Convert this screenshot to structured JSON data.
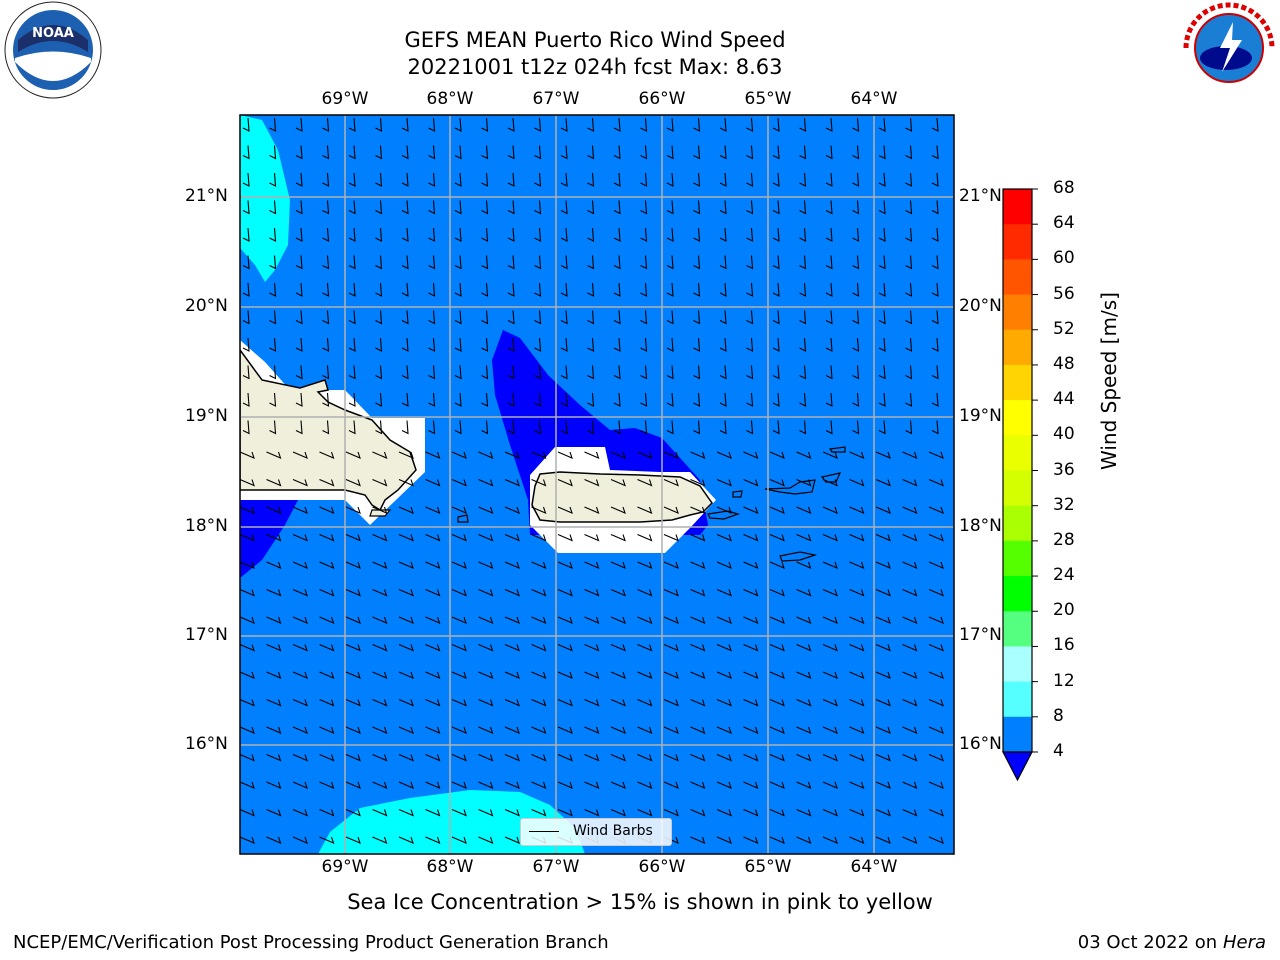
{
  "header": {
    "title_line1": "GEFS MEAN Puerto Rico Wind Speed",
    "title_line2": "20221001 t12z 024h fcst   Max: 8.63"
  },
  "logos": {
    "noaa_text": "NOAA",
    "nws_text": "NATIONAL WEATHER SERVICE"
  },
  "map": {
    "lon_labels": [
      "69°W",
      "68°W",
      "67°W",
      "66°W",
      "65°W",
      "64°W"
    ],
    "lat_labels": [
      "21°N",
      "20°N",
      "19°N",
      "18°N",
      "17°N",
      "16°N"
    ],
    "legend_label": "Wind Barbs"
  },
  "colorbar": {
    "label": "Wind Speed [m/s]",
    "ticks": [
      "68",
      "64",
      "60",
      "56",
      "52",
      "48",
      "44",
      "40",
      "36",
      "32",
      "28",
      "24",
      "20",
      "16",
      "12",
      "8",
      "4"
    ],
    "colors": [
      "#ff0000",
      "#ff2a00",
      "#ff5500",
      "#ff7f00",
      "#ffaa00",
      "#ffd400",
      "#ffff00",
      "#eaff00",
      "#d4ff00",
      "#aaff00",
      "#55ff00",
      "#00ff00",
      "#55ff7f",
      "#aaffff",
      "#55ffff",
      "#00ffff",
      "#0080ff"
    ],
    "under_color": "#0000ff"
  },
  "caption": "Sea Ice Concentration > 15% is shown in pink to yellow",
  "footer": {
    "left": "NCEP/EMC/Verification Post Processing Product Generation Branch",
    "right_date": "03 Oct 2022 on ",
    "right_host": "Hera"
  }
}
